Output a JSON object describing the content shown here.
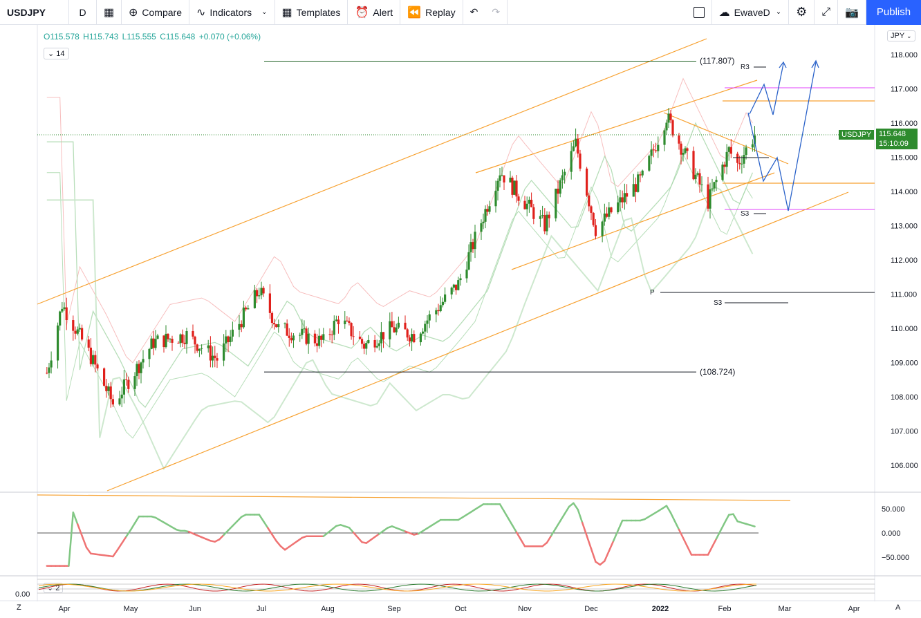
{
  "toolbar": {
    "symbol": "USDJPY",
    "interval": "D",
    "compare": "Compare",
    "indicators": "Indicators",
    "templates": "Templates",
    "alert": "Alert",
    "replay": "Replay",
    "layout_name": "EwaveD",
    "publish": "Publish"
  },
  "legend": {
    "open": "O115.578",
    "high": "H115.743",
    "low": "L115.555",
    "close": "C115.648",
    "change": "+0.070 (+0.06%)",
    "study_count": "14",
    "lower_study_count": "2"
  },
  "price_axis": {
    "currency": "JPY",
    "ticks": [
      "118.000",
      "117.000",
      "116.000",
      "115.000",
      "114.000",
      "113.000",
      "112.000",
      "111.000",
      "110.000",
      "109.000",
      "108.000",
      "107.000",
      "106.000"
    ],
    "last_price": "115.648",
    "countdown": "15:10:09",
    "symbol_tag": "USDJPY"
  },
  "osc_axis": {
    "ticks": [
      "50.000",
      "0.000",
      "−50.000"
    ]
  },
  "lower_axis": {
    "label": "0.00"
  },
  "time_axis": {
    "labels": [
      "Apr",
      "May",
      "Jun",
      "Jul",
      "Aug",
      "Sep",
      "Oct",
      "Nov",
      "Dec",
      "2022",
      "Feb",
      "Mar",
      "Apr"
    ]
  },
  "corner": {
    "left": "Z",
    "right": "A"
  },
  "annotations": {
    "high_level": "(117.807)",
    "low_level": "(108.724)",
    "pivot_r3": "R3",
    "pivot_s3_upper": "S3",
    "pivot_p": "P",
    "pivot_s3_lower": "S3"
  },
  "colors": {
    "up": "#26a69a",
    "candle_up": "#2e8b2e",
    "candle_down": "#e0201b",
    "channel": "#f7a130",
    "forecast": "#2a62c9",
    "pivot_magenta": "#e040fb",
    "accent": "#2962ff"
  },
  "chart_data": {
    "type": "candlestick",
    "symbol": "USDJPY",
    "interval": "D",
    "last": {
      "open": 115.578,
      "high": 115.743,
      "low": 115.555,
      "close": 115.648
    },
    "ylim": [
      105.2,
      118.6
    ],
    "price_series_monthly_close": [
      {
        "x": "2021-03-31",
        "y": 110.7
      },
      {
        "x": "2021-04-30",
        "y": 109.3
      },
      {
        "x": "2021-05-31",
        "y": 109.6
      },
      {
        "x": "2021-06-30",
        "y": 111.1
      },
      {
        "x": "2021-07-31",
        "y": 109.7
      },
      {
        "x": "2021-08-31",
        "y": 110.0
      },
      {
        "x": "2021-09-30",
        "y": 111.3
      },
      {
        "x": "2021-10-31",
        "y": 113.9
      },
      {
        "x": "2021-11-30",
        "y": 113.2
      },
      {
        "x": "2021-12-31",
        "y": 115.1
      },
      {
        "x": "2022-01-31",
        "y": 115.1
      },
      {
        "x": "2022-02-15",
        "y": 115.65
      }
    ],
    "horizontal_levels": [
      117.807,
      108.724
    ],
    "oscillator": {
      "ticks": [
        50,
        0,
        -50
      ]
    }
  }
}
